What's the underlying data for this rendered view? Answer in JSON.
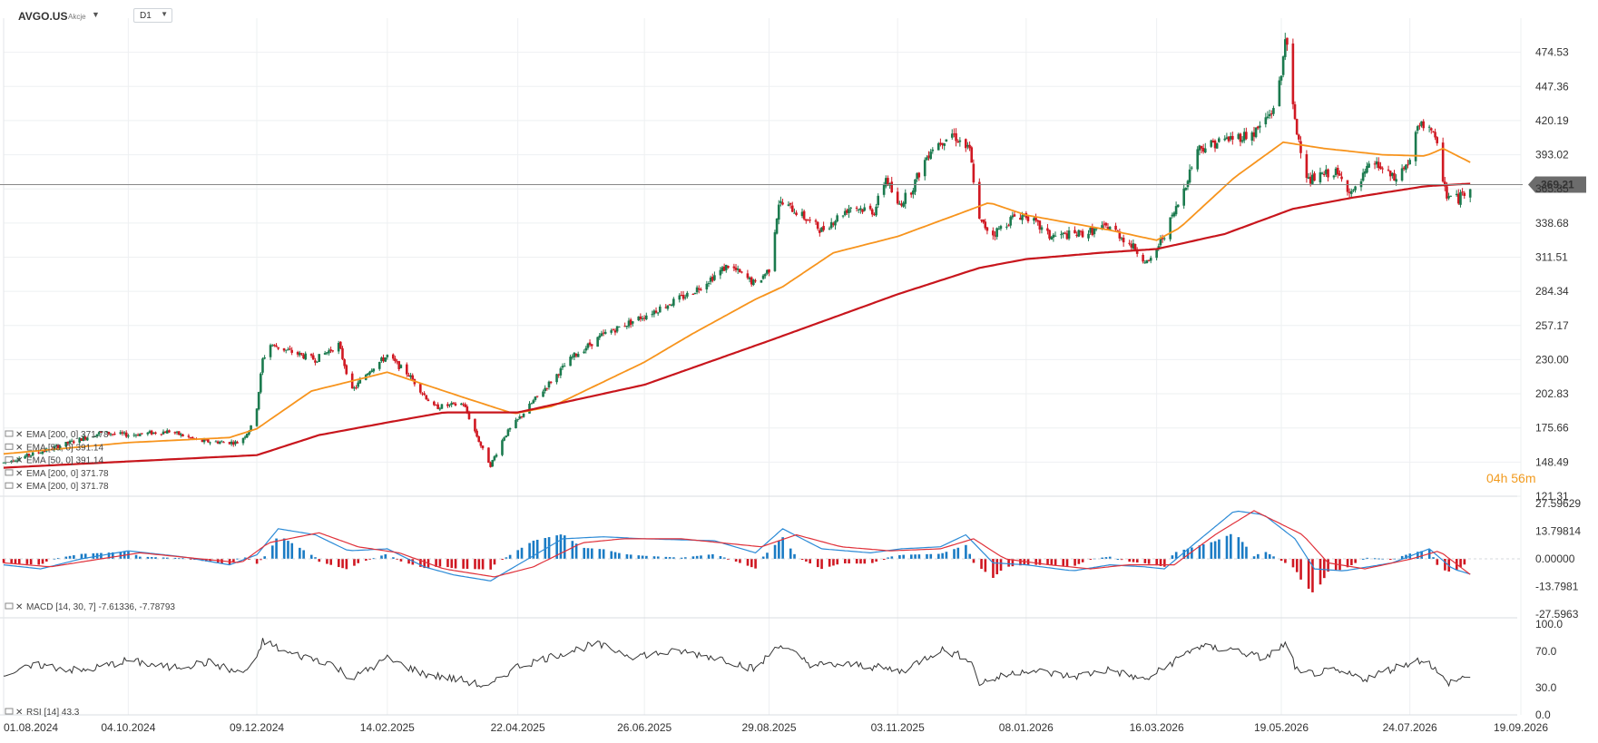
{
  "header": {
    "symbol": "AVGO.US",
    "exchange": "Akcje",
    "timeframe": "D1"
  },
  "timer": "04h 56m",
  "colors": {
    "up": "#1b7a4e",
    "down": "#d01822",
    "ema50": "#f7941d",
    "ema200": "#c8161d",
    "hist_pos": "#1a7bc4",
    "hist_neg": "#d01822",
    "macd_line": "#2b8ad6",
    "signal_line": "#e0313a",
    "rsi_line": "#333333",
    "current_line": "#888888"
  },
  "overlay_legend": [
    "EMA [200, 0] 371.78",
    "EMA [50, 0] 391.14",
    "EMA [50, 0] 391.14",
    "EMA [200, 0] 371.78",
    "EMA [200, 0] 371.78"
  ],
  "macd_legend": "MACD [14, 30, 7] -7.61336, -7.78793",
  "rsi_legend": "RSI [14] 43.3",
  "chart_data": {
    "type": "candlestick",
    "price_ticks": [
      "474.53",
      "447.36",
      "420.19",
      "393.02",
      "365.85",
      "338.68",
      "311.51",
      "284.34",
      "257.17",
      "230.00",
      "202.83",
      "175.66",
      "148.49",
      "121.31"
    ],
    "price_range": [
      121.31,
      501.7
    ],
    "current_price": 369.21,
    "current_price_label": "369.21",
    "x_ticks": [
      "01.08.2024",
      "04.10.2024",
      "09.12.2024",
      "14.02.2025",
      "22.04.2025",
      "26.06.2025",
      "29.08.2025",
      "03.11.2025",
      "08.01.2026",
      "16.03.2026",
      "19.05.2026",
      "24.07.2026",
      "19.09.2026"
    ],
    "date_range": [
      "01.08.2024",
      "19.09.2026"
    ],
    "price_anchors": [
      [
        "2024-08-01",
        148
      ],
      [
        "2024-08-25",
        159
      ],
      [
        "2024-09-20",
        172
      ],
      [
        "2024-10-04",
        170
      ],
      [
        "2024-10-25",
        173
      ],
      [
        "2024-11-10",
        165
      ],
      [
        "2024-11-30",
        164
      ],
      [
        "2024-12-08",
        180
      ],
      [
        "2024-12-12",
        230
      ],
      [
        "2024-12-16",
        242
      ],
      [
        "2024-12-25",
        237
      ],
      [
        "2025-01-08",
        230
      ],
      [
        "2025-01-20",
        242
      ],
      [
        "2025-01-27",
        205
      ],
      [
        "2025-02-05",
        222
      ],
      [
        "2025-02-14",
        233
      ],
      [
        "2025-02-25",
        218
      ],
      [
        "2025-03-10",
        192
      ],
      [
        "2025-03-25",
        195
      ],
      [
        "2025-04-04",
        158
      ],
      [
        "2025-04-08",
        146
      ],
      [
        "2025-04-15",
        169
      ],
      [
        "2025-04-30",
        197
      ],
      [
        "2025-05-20",
        232
      ],
      [
        "2025-06-05",
        250
      ],
      [
        "2025-06-26",
        265
      ],
      [
        "2025-07-20",
        283
      ],
      [
        "2025-08-08",
        305
      ],
      [
        "2025-08-22",
        290
      ],
      [
        "2025-08-29",
        302
      ],
      [
        "2025-09-03",
        355
      ],
      [
        "2025-09-10",
        350
      ],
      [
        "2025-09-25",
        333
      ],
      [
        "2025-10-10",
        352
      ],
      [
        "2025-10-22",
        348
      ],
      [
        "2025-10-28",
        375
      ],
      [
        "2025-11-03",
        352
      ],
      [
        "2025-11-10",
        365
      ],
      [
        "2025-11-20",
        398
      ],
      [
        "2025-12-01",
        410
      ],
      [
        "2025-12-10",
        396
      ],
      [
        "2025-12-15",
        340
      ],
      [
        "2025-12-22",
        330
      ],
      [
        "2026-01-02",
        344
      ],
      [
        "2026-01-08",
        345
      ],
      [
        "2026-01-20",
        328
      ],
      [
        "2026-02-05",
        330
      ],
      [
        "2026-02-20",
        336
      ],
      [
        "2026-03-05",
        318
      ],
      [
        "2026-03-12",
        306
      ],
      [
        "2026-03-20",
        330
      ],
      [
        "2026-03-28",
        357
      ],
      [
        "2026-04-06",
        398
      ],
      [
        "2026-04-20",
        405
      ],
      [
        "2026-05-05",
        410
      ],
      [
        "2026-05-14",
        427
      ],
      [
        "2026-05-19",
        455
      ],
      [
        "2026-05-21",
        490
      ],
      [
        "2026-05-26",
        418
      ],
      [
        "2026-06-02",
        372
      ],
      [
        "2026-06-15",
        380
      ],
      [
        "2026-06-25",
        362
      ],
      [
        "2026-07-05",
        388
      ],
      [
        "2026-07-16",
        373
      ],
      [
        "2026-07-24",
        388
      ],
      [
        "2026-07-28",
        414
      ],
      [
        "2026-08-03",
        418
      ],
      [
        "2026-08-07",
        398
      ],
      [
        "2026-08-12",
        360
      ],
      [
        "2026-08-18",
        358
      ],
      [
        "2026-08-24",
        369
      ]
    ],
    "ema50_anchors": [
      [
        "2024-08-01",
        155
      ],
      [
        "2024-10-04",
        164
      ],
      [
        "2024-11-25",
        168
      ],
      [
        "2024-12-09",
        175
      ],
      [
        "2025-01-06",
        205
      ],
      [
        "2025-02-14",
        220
      ],
      [
        "2025-03-25",
        200
      ],
      [
        "2025-04-20",
        187
      ],
      [
        "2025-05-10",
        193
      ],
      [
        "2025-06-26",
        228
      ],
      [
        "2025-07-20",
        250
      ],
      [
        "2025-08-22",
        278
      ],
      [
        "2025-09-05",
        288
      ],
      [
        "2025-10-01",
        315
      ],
      [
        "2025-11-03",
        328
      ],
      [
        "2025-12-08",
        348
      ],
      [
        "2025-12-20",
        355
      ],
      [
        "2026-01-08",
        345
      ],
      [
        "2026-02-20",
        333
      ],
      [
        "2026-03-16",
        325
      ],
      [
        "2026-03-28",
        335
      ],
      [
        "2026-04-25",
        375
      ],
      [
        "2026-05-20",
        403
      ],
      [
        "2026-06-10",
        398
      ],
      [
        "2026-07-10",
        393
      ],
      [
        "2026-08-01",
        392
      ],
      [
        "2026-08-10",
        398
      ],
      [
        "2026-08-24",
        387
      ]
    ],
    "ema200_anchors": [
      [
        "2024-08-01",
        144
      ],
      [
        "2024-10-04",
        149
      ],
      [
        "2024-12-09",
        154
      ],
      [
        "2025-01-10",
        170
      ],
      [
        "2025-02-14",
        180
      ],
      [
        "2025-03-15",
        188
      ],
      [
        "2025-04-22",
        188
      ],
      [
        "2025-06-26",
        210
      ],
      [
        "2025-08-29",
        245
      ],
      [
        "2025-11-03",
        282
      ],
      [
        "2025-12-15",
        303
      ],
      [
        "2026-01-08",
        310
      ],
      [
        "2026-02-15",
        315
      ],
      [
        "2026-03-16",
        318
      ],
      [
        "2026-04-20",
        330
      ],
      [
        "2026-05-25",
        350
      ],
      [
        "2026-06-25",
        359
      ],
      [
        "2026-08-01",
        368
      ],
      [
        "2026-08-24",
        370
      ]
    ],
    "macd_range": [
      -27.5963,
      27.59629
    ],
    "macd_ticks": [
      "27.59629",
      "13.79814",
      "0.00000",
      "-13.7981",
      "-27.5963"
    ],
    "macd_anchors": [
      [
        "2024-08-01",
        -3
      ],
      [
        "2024-08-20",
        -5
      ],
      [
        "2024-09-10",
        0
      ],
      [
        "2024-10-04",
        4
      ],
      [
        "2024-11-01",
        1
      ],
      [
        "2024-11-25",
        -3
      ],
      [
        "2024-12-09",
        2
      ],
      [
        "2024-12-20",
        15
      ],
      [
        "2025-01-08",
        12
      ],
      [
        "2025-01-25",
        4
      ],
      [
        "2025-02-14",
        5
      ],
      [
        "2025-03-05",
        -4
      ],
      [
        "2025-03-20",
        -8
      ],
      [
        "2025-04-08",
        -11
      ],
      [
        "2025-04-22",
        -3
      ],
      [
        "2025-05-15",
        10
      ],
      [
        "2025-06-05",
        11
      ],
      [
        "2025-06-26",
        10
      ],
      [
        "2025-08-01",
        9
      ],
      [
        "2025-08-22",
        3
      ],
      [
        "2025-09-05",
        15
      ],
      [
        "2025-09-25",
        5
      ],
      [
        "2025-10-20",
        3
      ],
      [
        "2025-11-05",
        5
      ],
      [
        "2025-11-25",
        6
      ],
      [
        "2025-12-08",
        12
      ],
      [
        "2025-12-22",
        -2
      ],
      [
        "2026-01-08",
        -3
      ],
      [
        "2026-02-01",
        -6
      ],
      [
        "2026-02-20",
        -3
      ],
      [
        "2026-03-10",
        -4
      ],
      [
        "2026-03-20",
        -5
      ],
      [
        "2026-04-05",
        8
      ],
      [
        "2026-04-25",
        24
      ],
      [
        "2026-05-10",
        22
      ],
      [
        "2026-05-26",
        10
      ],
      [
        "2026-06-05",
        -5
      ],
      [
        "2026-06-20",
        -6
      ],
      [
        "2026-07-15",
        -2
      ],
      [
        "2026-08-03",
        5
      ],
      [
        "2026-08-15",
        -5
      ],
      [
        "2026-08-24",
        -7.6
      ]
    ],
    "signal_anchors": [
      [
        "2024-08-01",
        -2
      ],
      [
        "2024-08-25",
        -4
      ],
      [
        "2024-09-20",
        0
      ],
      [
        "2024-10-10",
        3
      ],
      [
        "2024-11-10",
        0
      ],
      [
        "2024-12-01",
        -2
      ],
      [
        "2024-12-15",
        8
      ],
      [
        "2025-01-10",
        13
      ],
      [
        "2025-01-30",
        6
      ],
      [
        "2025-02-20",
        3
      ],
      [
        "2025-03-15",
        -5
      ],
      [
        "2025-04-10",
        -9
      ],
      [
        "2025-04-30",
        -4
      ],
      [
        "2025-05-25",
        8
      ],
      [
        "2025-06-15",
        10
      ],
      [
        "2025-07-15",
        10
      ],
      [
        "2025-08-25",
        6
      ],
      [
        "2025-09-12",
        12
      ],
      [
        "2025-10-05",
        6
      ],
      [
        "2025-10-30",
        4
      ],
      [
        "2025-11-25",
        5
      ],
      [
        "2025-12-12",
        10
      ],
      [
        "2025-12-28",
        0
      ],
      [
        "2026-01-20",
        -3
      ],
      [
        "2026-02-10",
        -5
      ],
      [
        "2026-03-01",
        -3
      ],
      [
        "2026-03-25",
        -3
      ],
      [
        "2026-04-15",
        12
      ],
      [
        "2026-05-05",
        24
      ],
      [
        "2026-05-30",
        12
      ],
      [
        "2026-06-12",
        -2
      ],
      [
        "2026-07-01",
        -5
      ],
      [
        "2026-07-25",
        0
      ],
      [
        "2026-08-08",
        4
      ],
      [
        "2026-08-24",
        -7.8
      ]
    ],
    "rsi_range": [
      0,
      100
    ],
    "rsi_ticks": [
      "100.0",
      "70.0",
      "30.0",
      "0.0"
    ],
    "rsi_anchors": [
      [
        "2024-08-01",
        45
      ],
      [
        "2024-08-20",
        55
      ],
      [
        "2024-09-10",
        48
      ],
      [
        "2024-10-04",
        60
      ],
      [
        "2024-10-25",
        52
      ],
      [
        "2024-11-15",
        58
      ],
      [
        "2024-12-01",
        45
      ],
      [
        "2024-12-09",
        60
      ],
      [
        "2024-12-12",
        82
      ],
      [
        "2024-12-25",
        68
      ],
      [
        "2025-01-15",
        58
      ],
      [
        "2025-01-27",
        40
      ],
      [
        "2025-02-14",
        62
      ],
      [
        "2025-03-05",
        45
      ],
      [
        "2025-03-25",
        38
      ],
      [
        "2025-04-07",
        30
      ],
      [
        "2025-04-20",
        52
      ],
      [
        "2025-05-15",
        68
      ],
      [
        "2025-06-01",
        78
      ],
      [
        "2025-06-20",
        65
      ],
      [
        "2025-07-15",
        70
      ],
      [
        "2025-08-05",
        62
      ],
      [
        "2025-08-22",
        50
      ],
      [
        "2025-09-03",
        78
      ],
      [
        "2025-09-20",
        55
      ],
      [
        "2025-10-15",
        55
      ],
      [
        "2025-11-05",
        48
      ],
      [
        "2025-11-25",
        72
      ],
      [
        "2025-12-10",
        62
      ],
      [
        "2025-12-15",
        35
      ],
      [
        "2026-01-08",
        50
      ],
      [
        "2026-02-01",
        42
      ],
      [
        "2026-02-20",
        50
      ],
      [
        "2026-03-10",
        38
      ],
      [
        "2026-03-20",
        52
      ],
      [
        "2026-04-05",
        75
      ],
      [
        "2026-04-25",
        72
      ],
      [
        "2026-05-10",
        62
      ],
      [
        "2026-05-21",
        78
      ],
      [
        "2026-05-28",
        45
      ],
      [
        "2026-06-15",
        48
      ],
      [
        "2026-07-01",
        40
      ],
      [
        "2026-07-20",
        55
      ],
      [
        "2026-08-01",
        62
      ],
      [
        "2026-08-12",
        35
      ],
      [
        "2026-08-24",
        43.3
      ]
    ],
    "gridlines": true
  }
}
